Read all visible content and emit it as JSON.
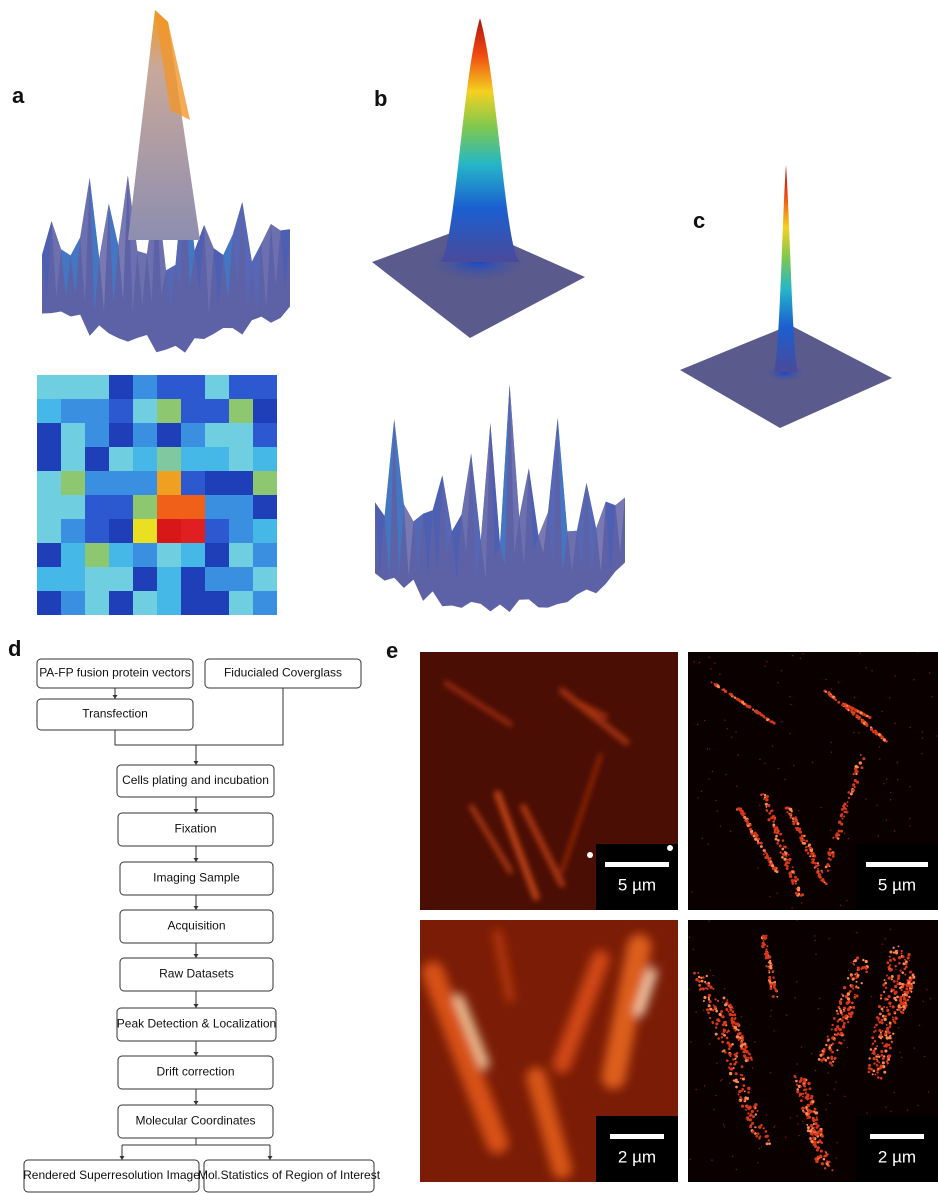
{
  "panel_labels": [
    "a",
    "b",
    "c",
    "d",
    "e"
  ],
  "flowchart": {
    "nodes": [
      "PA-FP fusion protein vectors",
      "Fiducialed Coverglass",
      "Transfection",
      "Cells plating and incubation",
      "Fixation",
      "Imaging Sample",
      "Acquisition",
      "Raw Datasets",
      "Peak Detection & Localization",
      "Drift correction",
      "Molecular Coordinates",
      "Rendered Superresolution Image",
      "Mol.Statistics of Region of Interest"
    ]
  },
  "scale_bars": [
    "5 µm",
    "5 µm",
    "2 µm",
    "2 µm"
  ]
}
